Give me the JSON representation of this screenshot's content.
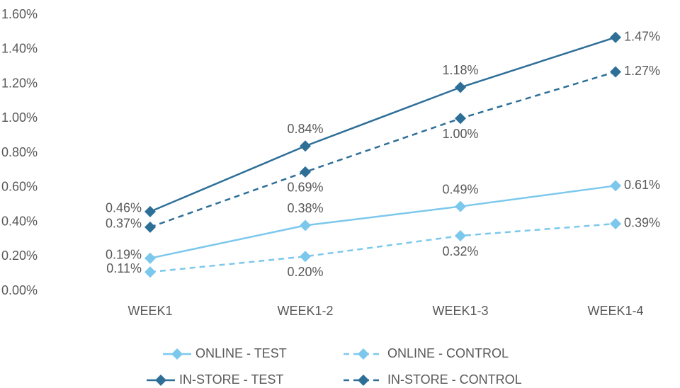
{
  "chart_data": {
    "type": "line",
    "categories": [
      "WEEK1",
      "WEEK1-2",
      "WEEK1-3",
      "WEEK1-4"
    ],
    "series": [
      {
        "name": "ONLINE - TEST",
        "color": "#7cc8ec",
        "line_style": "solid",
        "values": [
          0.19,
          0.38,
          0.49,
          0.61
        ],
        "value_labels": [
          "0.19%",
          "0.38%",
          "0.49%",
          "0.61%"
        ]
      },
      {
        "name": "ONLINE - CONTROL",
        "color": "#7cc8ec",
        "line_style": "dashed",
        "values": [
          0.11,
          0.2,
          0.32,
          0.39
        ],
        "value_labels": [
          "0.11%",
          "0.20%",
          "0.32%",
          "0.39%"
        ]
      },
      {
        "name": "IN-STORE - TEST",
        "color": "#2e6f98",
        "line_style": "solid",
        "values": [
          0.46,
          0.84,
          1.18,
          1.47
        ],
        "value_labels": [
          "0.46%",
          "0.84%",
          "1.18%",
          "1.47%"
        ]
      },
      {
        "name": "IN-STORE - CONTROL",
        "color": "#2e6f98",
        "line_style": "dashed",
        "values": [
          0.37,
          0.69,
          1.0,
          1.27
        ],
        "value_labels": [
          "0.37%",
          "0.69%",
          "1.00%",
          "1.27%"
        ]
      }
    ],
    "ylim": [
      0,
      1.6
    ],
    "yticks": [
      {
        "value": 0,
        "label": "0.00%"
      },
      {
        "value": 0.2,
        "label": "0.20%"
      },
      {
        "value": 0.4,
        "label": "0.40%"
      },
      {
        "value": 0.6,
        "label": "0.60%"
      },
      {
        "value": 0.8,
        "label": "0.80%"
      },
      {
        "value": 1.0,
        "label": "1.00%"
      },
      {
        "value": 1.2,
        "label": "1.20%"
      },
      {
        "value": 1.4,
        "label": "1.40%"
      },
      {
        "value": 1.6,
        "label": "1.60%"
      }
    ],
    "grid": false,
    "legend": "bottom"
  }
}
